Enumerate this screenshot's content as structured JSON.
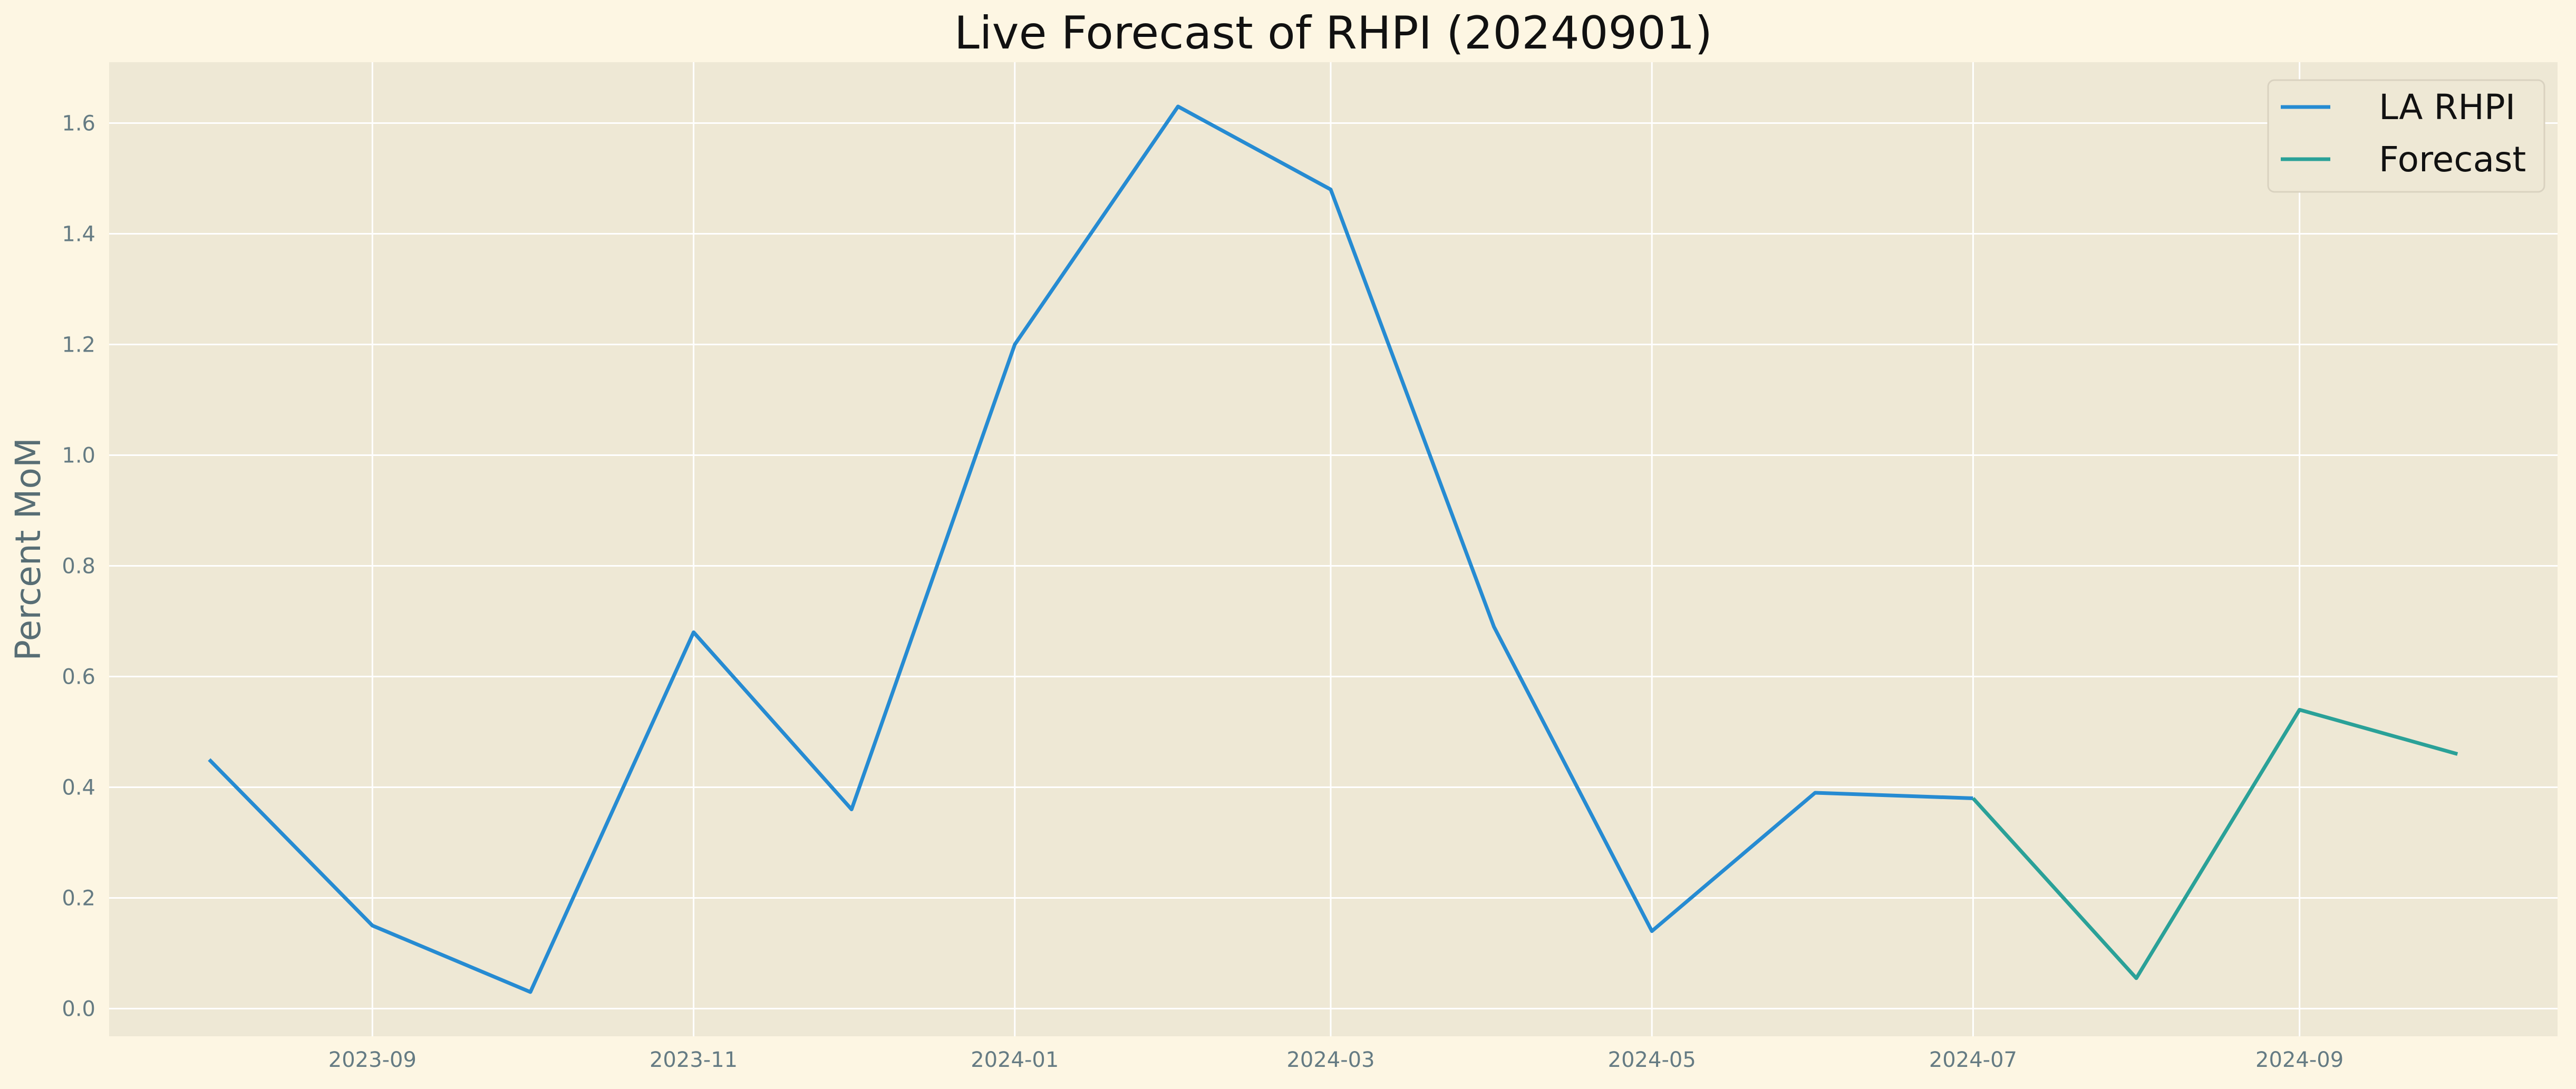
{
  "chart_data": {
    "type": "line",
    "title": "Live Forecast of RHPI (20240901)",
    "xlabel": "",
    "ylabel": "Percent MoM",
    "x_ticks": [
      "2023-09",
      "2023-11",
      "2024-01",
      "2024-03",
      "2024-05",
      "2024-07",
      "2024-09"
    ],
    "y_ticks": [
      "0.0",
      "0.2",
      "0.4",
      "0.6",
      "0.8",
      "1.0",
      "1.2",
      "1.4",
      "1.6"
    ],
    "xlim": [
      "2023-07-13",
      "2024-10-20"
    ],
    "ylim": [
      -0.05,
      1.71
    ],
    "grid": true,
    "legend_position": "top-right",
    "series": [
      {
        "name": "LA RHPI",
        "color": "#268bd2",
        "points": [
          {
            "x": "2023-08-01",
            "y": 0.45
          },
          {
            "x": "2023-09-01",
            "y": 0.15
          },
          {
            "x": "2023-10-01",
            "y": 0.03
          },
          {
            "x": "2023-11-01",
            "y": 0.68
          },
          {
            "x": "2023-12-01",
            "y": 0.36
          },
          {
            "x": "2024-01-01",
            "y": 1.2
          },
          {
            "x": "2024-02-01",
            "y": 1.63
          },
          {
            "x": "2024-03-01",
            "y": 1.48
          },
          {
            "x": "2024-04-01",
            "y": 0.69
          },
          {
            "x": "2024-05-01",
            "y": 0.14
          },
          {
            "x": "2024-06-01",
            "y": 0.39
          },
          {
            "x": "2024-07-01",
            "y": 0.38
          }
        ]
      },
      {
        "name": "Forecast",
        "color": "#2aa198",
        "points": [
          {
            "x": "2024-07-01",
            "y": 0.38
          },
          {
            "x": "2024-08-01",
            "y": 0.055
          },
          {
            "x": "2024-09-01",
            "y": 0.54
          },
          {
            "x": "2024-10-01",
            "y": 0.46
          }
        ]
      }
    ]
  }
}
